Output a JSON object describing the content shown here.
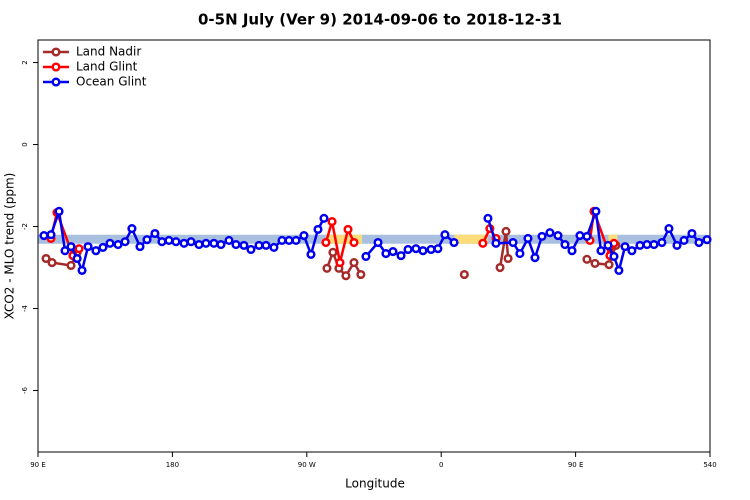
{
  "chart_data": {
    "type": "line",
    "title": "0-5N July (Ver 9)   2014-09-06 to 2018-12-31",
    "x_label": "Longitude",
    "y_label": "XCO2 - MLO trend (ppm)",
    "xlim": [
      90,
      540
    ],
    "ylim": [
      -7.5,
      2.55
    ],
    "xticks": [
      {
        "value": 90,
        "label": "90 E"
      },
      180,
      {
        "value": 270,
        "label": "90 W"
      },
      {
        "value": 360,
        "label": "0"
      },
      {
        "value": 450,
        "label": "90 E"
      },
      540
    ],
    "yticks": [
      -6,
      -4,
      -2,
      0,
      2
    ],
    "legend": "top-left",
    "band": {
      "range": [
        -2.2,
        -2.42
      ],
      "color": "#a8bfe0"
    },
    "highlight_bands": {
      "color": "#fddc7a",
      "ranges": [
        [
          283,
          307
        ],
        [
          369,
          391
        ],
        [
          472,
          478
        ]
      ]
    },
    "series": [
      {
        "name": "Land Nadir",
        "color": "#a52a2a",
        "x": [
          95.4,
          99.4,
          112.1,
          116.2,
          null,
          283.5,
          287.5,
          291.5,
          296.2,
          301.6,
          306.2,
          null,
          375.5,
          null,
          399.4,
          403.4,
          404.8,
          null,
          457.6,
          463.0,
          472.4,
          477.0
        ],
        "values": [
          -2.78,
          -2.88,
          -2.95,
          -2.63,
          null,
          -3.02,
          -2.63,
          -3.02,
          -3.2,
          -2.88,
          -3.17,
          null,
          -3.17,
          null,
          -3.0,
          -2.12,
          -2.78,
          null,
          -2.8,
          -2.9,
          -2.93,
          -2.46
        ]
      },
      {
        "name": "Land Glint",
        "color": "#ff0000",
        "x": [
          98.7,
          102.7,
          113.4,
          117.5,
          null,
          282.8,
          286.9,
          292.2,
          297.6,
          301.6,
          null,
          387.9,
          392.6,
          396.7,
          null,
          459.6,
          462.3,
          473.0,
          475.7
        ],
        "values": [
          -2.29,
          -1.66,
          -2.71,
          -2.54,
          null,
          -2.39,
          -1.88,
          -2.88,
          -2.07,
          -2.39,
          null,
          -2.41,
          -2.05,
          -2.29,
          null,
          -2.34,
          -1.63,
          -2.71,
          -2.41
        ]
      },
      {
        "name": "Ocean Glint",
        "color": "#0000ee",
        "x": [
          94.0,
          98.7,
          104.1,
          108.1,
          112.1,
          116.2,
          119.5,
          123.5,
          128.8,
          133.5,
          138.2,
          143.6,
          148.3,
          152.9,
          158.3,
          163.0,
          168.3,
          173.0,
          177.7,
          182.4,
          187.8,
          192.5,
          197.8,
          202.5,
          207.8,
          212.5,
          217.9,
          222.6,
          227.9,
          232.6,
          238.0,
          242.7,
          248.0,
          253.4,
          258.1,
          262.8,
          268.1,
          272.8,
          277.5,
          281.5,
          null,
          309.6,
          317.7,
          323.0,
          327.7,
          333.1,
          337.8,
          343.1,
          347.8,
          353.2,
          357.8,
          362.5,
          368.6,
          null,
          391.3,
          396.7,
          408.1,
          412.7,
          418.1,
          422.8,
          427.5,
          432.8,
          438.2,
          442.9,
          447.6,
          452.9,
          457.6,
          463.6,
          467.0,
          471.7,
          475.7,
          479.0,
          483.1,
          487.7,
          493.1,
          497.8,
          502.5,
          507.8,
          512.5,
          517.9,
          522.6,
          527.9,
          532.6,
          538.0
        ],
        "values": [
          -2.22,
          -2.2,
          -1.63,
          -2.59,
          -2.49,
          -2.78,
          -3.07,
          -2.49,
          -2.59,
          -2.51,
          -2.41,
          -2.44,
          -2.37,
          -2.05,
          -2.49,
          -2.32,
          -2.17,
          -2.37,
          -2.34,
          -2.37,
          -2.41,
          -2.37,
          -2.44,
          -2.41,
          -2.41,
          -2.44,
          -2.34,
          -2.44,
          -2.46,
          -2.56,
          -2.46,
          -2.46,
          -2.51,
          -2.34,
          -2.34,
          -2.34,
          -2.22,
          -2.68,
          -2.07,
          -1.8,
          null,
          -2.73,
          -2.39,
          -2.66,
          -2.61,
          -2.71,
          -2.56,
          -2.54,
          -2.59,
          -2.56,
          -2.54,
          -2.2,
          -2.39,
          null,
          -1.8,
          -2.41,
          -2.39,
          -2.66,
          -2.29,
          -2.76,
          -2.24,
          -2.15,
          -2.22,
          -2.44,
          -2.59,
          -2.22,
          -2.24,
          -1.63,
          -2.59,
          -2.46,
          -2.73,
          -3.07,
          -2.49,
          -2.59,
          -2.46,
          -2.44,
          -2.44,
          -2.39,
          -2.05,
          -2.46,
          -2.34,
          -2.17,
          -2.39,
          -2.32
        ]
      }
    ]
  }
}
